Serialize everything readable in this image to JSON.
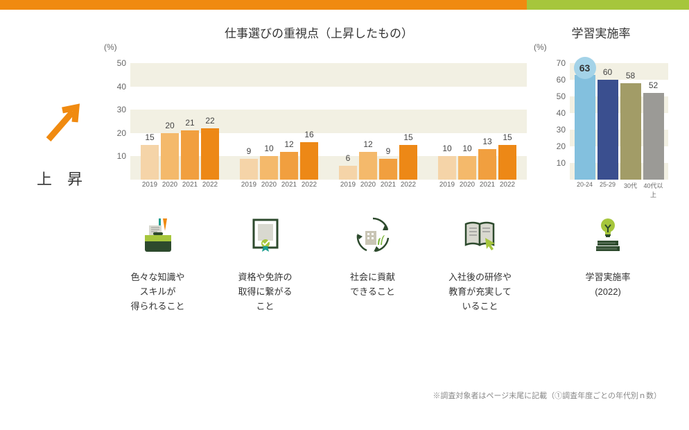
{
  "header": {
    "orange_color": "#f08a10",
    "green_color": "#a6c63c"
  },
  "left_indicator": {
    "label": "上 昇",
    "arrow_color": "#f08a10"
  },
  "main_chart": {
    "title": "仕事選びの重視点（上昇したもの）",
    "unit": "(%)",
    "ylim": [
      0,
      50
    ],
    "ytick_step": 10,
    "grid_band_color": "#f2f0e3",
    "background": "#ffffff",
    "bar_colors": [
      "#f5d4a8",
      "#f4b96b",
      "#f19f3f",
      "#ed8816"
    ],
    "categories": [
      "2019",
      "2020",
      "2021",
      "2022"
    ],
    "groups": [
      {
        "values": [
          15,
          20,
          21,
          22
        ]
      },
      {
        "values": [
          9,
          10,
          12,
          16
        ]
      },
      {
        "values": [
          6,
          12,
          9,
          15
        ]
      },
      {
        "values": [
          10,
          10,
          13,
          15
        ]
      }
    ],
    "icons": [
      {
        "name": "briefcase-icon",
        "text": "色々な知識や\nスキルが\n得られること"
      },
      {
        "name": "certificate-icon",
        "text": "資格や免許の\n取得に繋がる\nこと"
      },
      {
        "name": "recycle-building-icon",
        "text": "社会に貢献\nできること"
      },
      {
        "name": "book-cursor-icon",
        "text": "入社後の研修や\n教育が充実して\nいること"
      }
    ]
  },
  "right_chart": {
    "title": "学習実施率",
    "unit": "(%)",
    "ylim": [
      0,
      70
    ],
    "ytick_step": 10,
    "grid_band_color": "#f2f0e3",
    "categories": [
      "20-24",
      "25-29",
      "30代",
      "40代以上"
    ],
    "values": [
      63,
      60,
      58,
      52
    ],
    "bar_colors": [
      "#83c0de",
      "#3a4f8f",
      "#a29c67",
      "#9b9a96"
    ],
    "highlight_index": 0,
    "highlight_color": "#a4d3e8",
    "icon": {
      "name": "lightbulb-books-icon",
      "text": "学習実施率\n(2022)"
    }
  },
  "footnote": "※調査対象者はページ末尾に記載（①調査年度ごとの年代別ｎ数）"
}
